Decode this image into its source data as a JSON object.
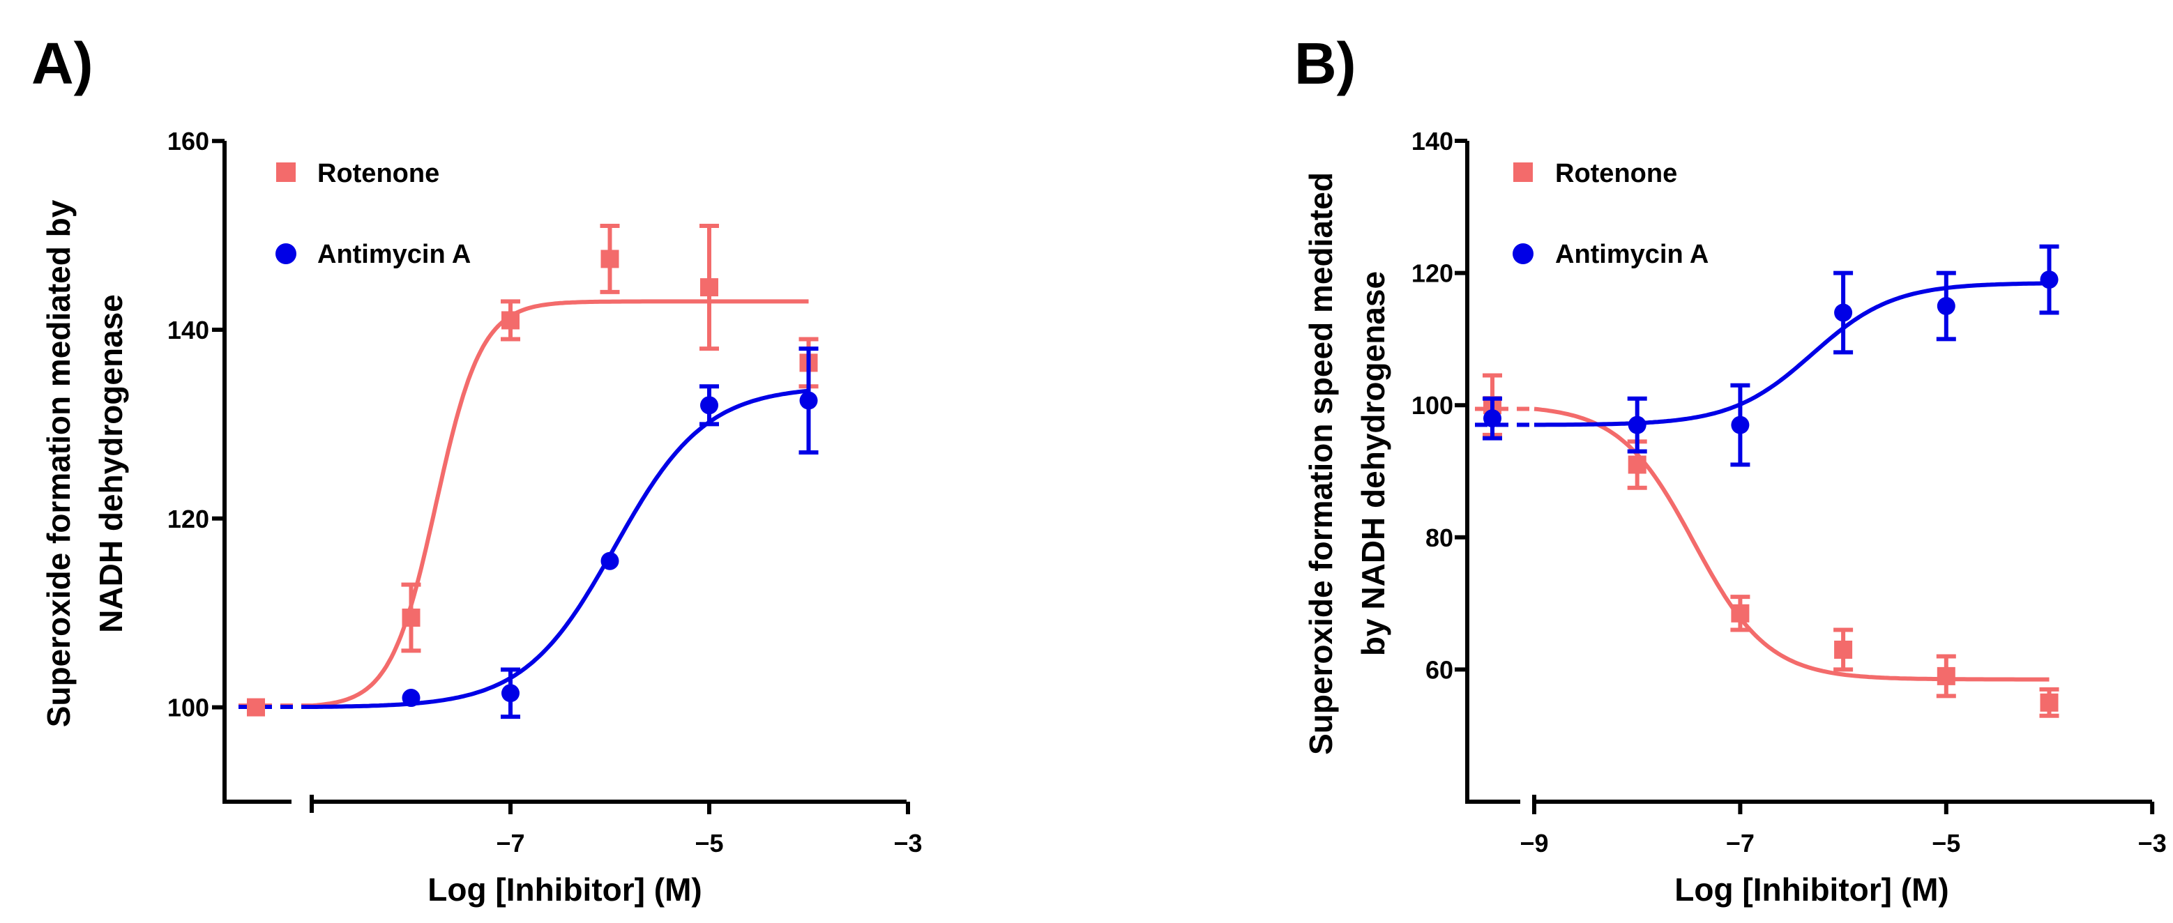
{
  "colors": {
    "rotenone": "#f36b6b",
    "antimycin": "#0000e6",
    "axis": "#000000"
  },
  "chart_data": [
    {
      "type": "scatter",
      "panel_label": "A)",
      "xlabel": "Log [Inhibitor] (M)",
      "ylabel_lines": [
        "Superoxide  formation mediated by",
        "NADH dehydrogenase"
      ],
      "xlim": [
        -9.7,
        -3
      ],
      "ylim": [
        90,
        160
      ],
      "x_axis_break": true,
      "xticks": [
        -7,
        -5,
        -3
      ],
      "xtick_labels": [
        "−7",
        "−5",
        "−3"
      ],
      "yticks": [
        100,
        120,
        140,
        160
      ],
      "ytick_labels": [
        "100",
        "120",
        "140",
        "160"
      ],
      "legend_position": "top-left",
      "series": [
        {
          "name": "Rotenone",
          "marker": "square",
          "color": "#f36b6b",
          "points": [
            {
              "x": -9.6,
              "y": 100,
              "err": 0
            },
            {
              "x": -8,
              "y": 109.5,
              "err": 3.5
            },
            {
              "x": -7,
              "y": 141,
              "err": 2
            },
            {
              "x": -6,
              "y": 147.5,
              "err": 3.5
            },
            {
              "x": -5,
              "y": 144.5,
              "err": 6.5
            },
            {
              "x": -4,
              "y": 136.5,
              "err": 2.5
            }
          ],
          "fit": {
            "bottom": 100,
            "top": 143,
            "logEC50": -7.75,
            "hill": 1.9,
            "x_range": [
              -9.0,
              -4.0
            ]
          }
        },
        {
          "name": "Antimycin A",
          "marker": "circle",
          "color": "#0000e6",
          "points": [
            {
              "x": -8,
              "y": 101,
              "err": 0
            },
            {
              "x": -7,
              "y": 101.5,
              "err": 2.5
            },
            {
              "x": -6,
              "y": 115.5,
              "err": 0
            },
            {
              "x": -5,
              "y": 132,
              "err": 2
            },
            {
              "x": -4,
              "y": 132.5,
              "err": 5.5
            }
          ],
          "fit": {
            "bottom": 100,
            "top": 134,
            "logEC50": -5.95,
            "hill": 0.95,
            "x_range": [
              -9.0,
              -4.0
            ]
          }
        }
      ]
    },
    {
      "type": "scatter",
      "panel_label": "B)",
      "xlabel": "Log [Inhibitor] (M)",
      "ylabel_lines": [
        "Superoxide formation speed mediated",
        "by NADH dehydrogenase"
      ],
      "xlim": [
        -9.7,
        -3
      ],
      "ylim": [
        40,
        140
      ],
      "x_axis_break": true,
      "xticks": [
        -9,
        -7,
        -5,
        -3
      ],
      "xtick_labels": [
        "−9",
        "−7",
        "−5",
        "−3"
      ],
      "yticks": [
        60,
        80,
        100,
        120,
        140
      ],
      "ytick_labels": [
        "60",
        "80",
        "100",
        "120",
        "140"
      ],
      "legend_position": "top-left",
      "series": [
        {
          "name": "Rotenone",
          "marker": "square",
          "color": "#f36b6b",
          "points": [
            {
              "x": -9.6,
              "y": 100,
              "err": 4.5
            },
            {
              "x": -8,
              "y": 91,
              "err": 3.5
            },
            {
              "x": -7,
              "y": 68.5,
              "err": 2.5
            },
            {
              "x": -6,
              "y": 63,
              "err": 3
            },
            {
              "x": -5,
              "y": 59,
              "err": 3
            },
            {
              "x": -4,
              "y": 55,
              "err": 2
            }
          ],
          "fit": {
            "bottom": 58.5,
            "top": 100,
            "logEC50": -7.45,
            "hill": -1.2,
            "x_range": [
              -9.0,
              -4.0
            ]
          }
        },
        {
          "name": "Antimycin A",
          "marker": "circle",
          "color": "#0000e6",
          "points": [
            {
              "x": -9.6,
              "y": 98,
              "err": 3
            },
            {
              "x": -8,
              "y": 97,
              "err": 4
            },
            {
              "x": -7,
              "y": 97,
              "err": 6
            },
            {
              "x": -6,
              "y": 114,
              "err": 6
            },
            {
              "x": -5,
              "y": 115,
              "err": 5
            },
            {
              "x": -4,
              "y": 119,
              "err": 5
            }
          ],
          "fit": {
            "bottom": 97,
            "top": 118.5,
            "logEC50": -6.3,
            "hill": 1.1,
            "x_range": [
              -9.0,
              -4.0
            ]
          }
        }
      ]
    }
  ]
}
